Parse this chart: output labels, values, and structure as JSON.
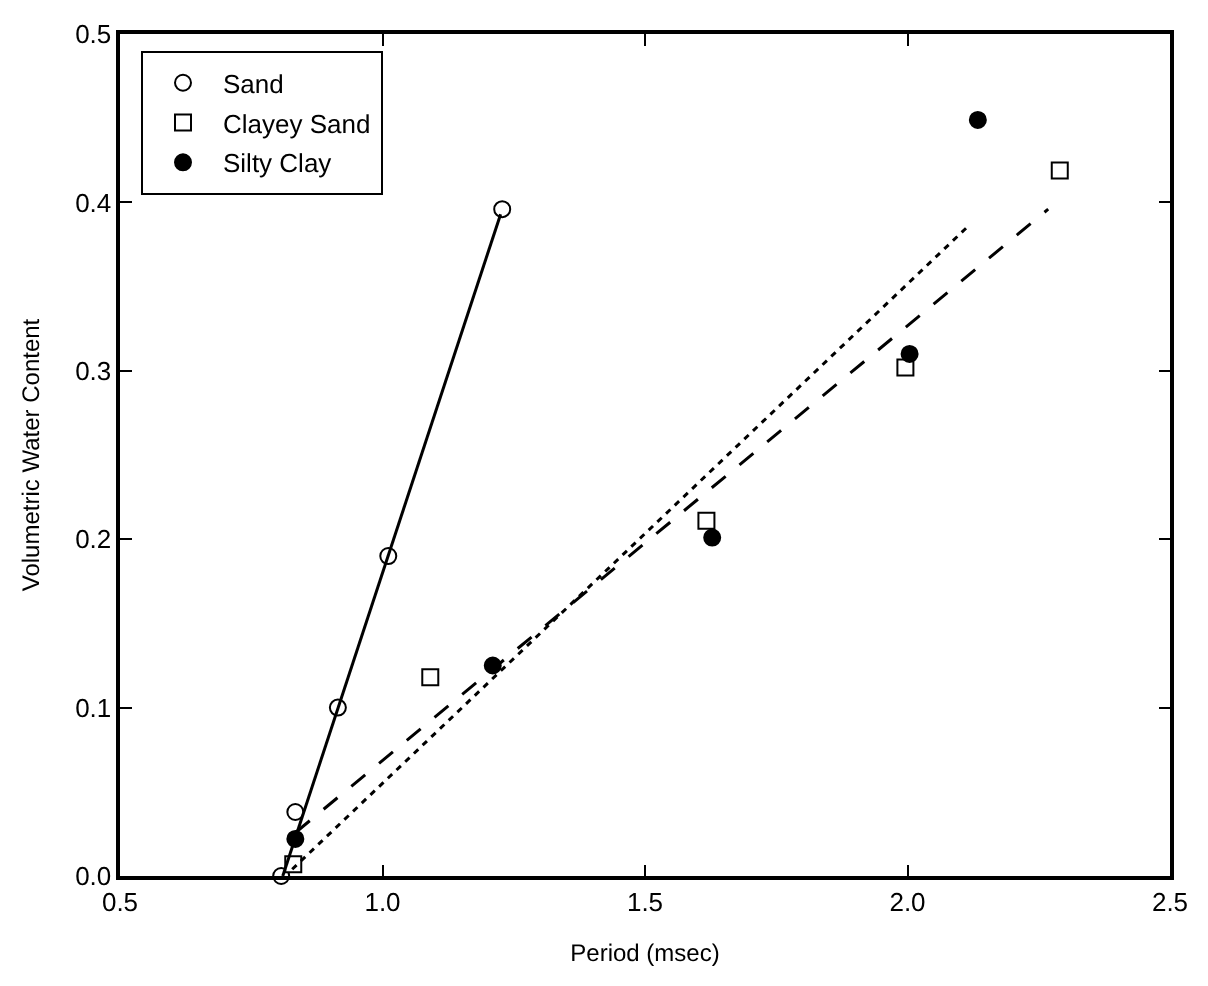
{
  "chart_data": {
    "type": "scatter",
    "xlabel": "Period (msec)",
    "ylabel": "Volumetric Water Content",
    "xlim": [
      0.5,
      2.5
    ],
    "xticks": [
      0.5,
      {
        "value": 1,
        "label": "1.0"
      },
      1.5,
      {
        "value": 2,
        "label": "2.0"
      },
      2.5
    ],
    "ylim": [
      0.0,
      0.5
    ],
    "yticks": [
      {
        "value": 0,
        "label": "0.0"
      },
      0.1,
      0.2,
      0.3,
      0.4,
      0.5
    ],
    "legend": "top left",
    "series": [
      {
        "name": "Sand",
        "marker": "circle",
        "color": "#ffffff",
        "x": [
          0.807,
          0.834,
          0.915,
          1.011,
          1.228
        ],
        "values": [
          0.0,
          0.038,
          0.1,
          0.19,
          0.396
        ]
      },
      {
        "name": "Clayey Sand",
        "marker": "square",
        "color": "#ffffff",
        "x": [
          0.83,
          1.091,
          1.617,
          1.996,
          2.29
        ],
        "values": [
          0.007,
          0.118,
          0.211,
          0.302,
          0.419
        ]
      },
      {
        "name": "Silty Clay",
        "marker": "circle",
        "color": "#000000",
        "x": [
          0.834,
          1.21,
          1.628,
          2.004,
          2.134
        ],
        "values": [
          0.022,
          0.125,
          0.201,
          0.31,
          0.449
        ]
      },
      {
        "type": "line",
        "line_style": "solid",
        "color": "#000000",
        "x": [
          0.81,
          1.225
        ],
        "values": [
          0.0,
          0.393
        ]
      },
      {
        "type": "line",
        "line_style": "dashed",
        "color": "#000000",
        "x": [
          0.835,
          2.268
        ],
        "values": [
          0.026,
          0.396
        ]
      },
      {
        "type": "line",
        "line_style": "dotted",
        "color": "#000000",
        "x": [
          0.828,
          2.116
        ],
        "values": [
          0.004,
          0.386
        ]
      }
    ]
  }
}
